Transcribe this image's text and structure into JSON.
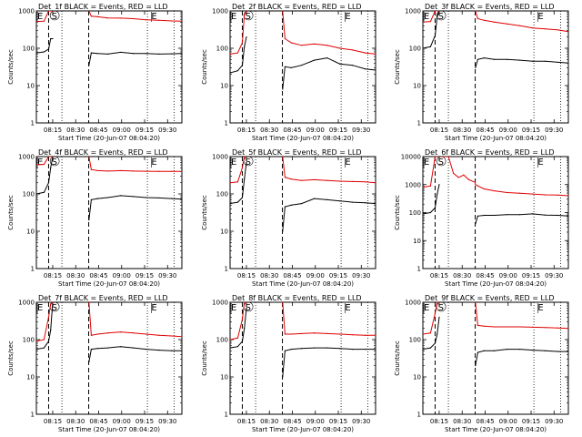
{
  "figure": {
    "xlabel": "Start Time (20-Jun-07 08:04:20)",
    "ylabel": "Counts/sec",
    "x_ticks": [
      "08:15",
      "08:30",
      "08:45",
      "09:00",
      "09:15",
      "09:30"
    ],
    "x_tick_seconds": [
      640,
      1540,
      2440,
      3340,
      4240,
      5140
    ],
    "xlim_seconds": [
      0,
      5700
    ],
    "y_ticks": [
      "1",
      "10",
      "100",
      "1000"
    ],
    "y_tick_values": [
      1,
      10,
      100,
      1000
    ],
    "ylim": [
      1,
      1000
    ],
    "ylog": true,
    "legend_colors": {
      "events": "#000000",
      "lld": "#e00000"
    },
    "markers": {
      "E_left_seconds": 0,
      "S_seconds": 700,
      "E_right_seconds": 4500,
      "dashed_seconds": [
        480,
        2050
      ],
      "dotted_seconds": [
        1000,
        4350,
        5400
      ]
    }
  },
  "chart_data": [
    {
      "type": "line",
      "title": "Det_1f BLACK = Events, RED = LLD",
      "ylim": [
        1,
        1000
      ],
      "series": [
        {
          "name": "Events",
          "color": "#000000",
          "x": [
            0,
            300,
            480,
            560,
            640,
            700,
            720,
            2050,
            2060,
            2150,
            2400,
            2800,
            3300,
            3800,
            4300,
            4800,
            5300,
            5700
          ],
          "values": [
            75,
            80,
            95,
            180,
            180,
            null,
            null,
            null,
            35,
            75,
            72,
            70,
            78,
            72,
            72,
            70,
            71,
            72
          ]
        },
        {
          "name": "LLD",
          "color": "#e00000",
          "x": [
            0,
            300,
            480,
            560,
            640,
            700,
            720,
            2050,
            2060,
            2150,
            2400,
            2800,
            3300,
            3800,
            4300,
            4800,
            5300,
            5700
          ],
          "values": [
            520,
            530,
            1000,
            1000,
            1000,
            null,
            null,
            null,
            1000,
            720,
            700,
            650,
            640,
            620,
            580,
            560,
            540,
            530
          ]
        }
      ]
    },
    {
      "type": "line",
      "title": "Det_2f BLACK = Events, RED = LLD",
      "ylim": [
        1,
        1000
      ],
      "series": [
        {
          "name": "Events",
          "color": "#000000",
          "x": [
            0,
            300,
            480,
            560,
            640,
            700,
            720,
            2050,
            2060,
            2150,
            2400,
            2800,
            3300,
            3800,
            4300,
            4800,
            5300,
            5700
          ],
          "values": [
            22,
            25,
            35,
            110,
            200,
            null,
            null,
            null,
            8,
            32,
            30,
            35,
            48,
            55,
            38,
            35,
            28,
            26
          ]
        },
        {
          "name": "LLD",
          "color": "#e00000",
          "x": [
            0,
            300,
            480,
            560,
            640,
            700,
            720,
            2050,
            2060,
            2150,
            2400,
            2800,
            3300,
            3800,
            4300,
            4800,
            5300,
            5700
          ],
          "values": [
            70,
            75,
            140,
            800,
            1000,
            null,
            null,
            null,
            1000,
            180,
            140,
            120,
            130,
            120,
            100,
            90,
            75,
            70
          ]
        }
      ]
    },
    {
      "type": "line",
      "title": "Det_3f BLACK = Events, RED = LLD",
      "ylim": [
        1,
        1000
      ],
      "series": [
        {
          "name": "Events",
          "color": "#000000",
          "x": [
            0,
            300,
            480,
            560,
            640,
            700,
            720,
            2050,
            2060,
            2150,
            2400,
            2800,
            3300,
            3800,
            4300,
            4800,
            5300,
            5700
          ],
          "values": [
            100,
            110,
            220,
            700,
            1000,
            null,
            null,
            null,
            30,
            50,
            55,
            50,
            50,
            48,
            45,
            45,
            42,
            40
          ]
        },
        {
          "name": "LLD",
          "color": "#e00000",
          "x": [
            0,
            300,
            480,
            560,
            640,
            700,
            720,
            2050,
            2060,
            2150,
            2400,
            2800,
            3300,
            3800,
            4300,
            4800,
            5300,
            5700
          ],
          "values": [
            500,
            520,
            1000,
            1000,
            1000,
            null,
            null,
            null,
            1000,
            620,
            560,
            500,
            450,
            400,
            350,
            330,
            310,
            280
          ]
        }
      ]
    },
    {
      "type": "line",
      "title": "Det_4f BLACK = Events, RED = LLD",
      "ylim": [
        1,
        1000
      ],
      "series": [
        {
          "name": "Events",
          "color": "#000000",
          "x": [
            0,
            300,
            480,
            560,
            640,
            700,
            720,
            2050,
            2060,
            2150,
            2400,
            2800,
            3300,
            3800,
            4300,
            4800,
            5300,
            5700
          ],
          "values": [
            100,
            110,
            200,
            500,
            1000,
            null,
            null,
            null,
            20,
            70,
            75,
            80,
            90,
            85,
            80,
            78,
            75,
            72
          ]
        },
        {
          "name": "LLD",
          "color": "#e00000",
          "x": [
            0,
            300,
            480,
            560,
            640,
            700,
            720,
            2050,
            2060,
            2150,
            2400,
            2800,
            3300,
            3800,
            4300,
            4800,
            5300,
            5700
          ],
          "values": [
            600,
            620,
            1000,
            1000,
            1000,
            null,
            null,
            null,
            1000,
            450,
            420,
            410,
            420,
            410,
            405,
            400,
            400,
            400
          ]
        }
      ]
    },
    {
      "type": "line",
      "title": "Det_5f BLACK = Events, RED = LLD",
      "ylim": [
        1,
        1000
      ],
      "series": [
        {
          "name": "Events",
          "color": "#000000",
          "x": [
            0,
            300,
            480,
            560,
            640,
            700,
            720,
            2050,
            2060,
            2150,
            2400,
            2800,
            3300,
            3800,
            4300,
            4800,
            5300,
            5700
          ],
          "values": [
            55,
            60,
            80,
            250,
            700,
            null,
            null,
            null,
            10,
            45,
            50,
            55,
            75,
            70,
            65,
            60,
            58,
            55
          ]
        },
        {
          "name": "LLD",
          "color": "#e00000",
          "x": [
            0,
            300,
            480,
            560,
            640,
            700,
            720,
            2050,
            2060,
            2150,
            2400,
            2800,
            3300,
            3800,
            4300,
            4800,
            5300,
            5700
          ],
          "values": [
            200,
            210,
            500,
            1000,
            1000,
            null,
            null,
            null,
            1000,
            280,
            250,
            230,
            240,
            230,
            220,
            215,
            210,
            200
          ]
        }
      ]
    },
    {
      "type": "line",
      "title": "Det_6f BLACK = Events, RED = LLD",
      "ylim": [
        1,
        10000
      ],
      "series": [
        {
          "name": "Events",
          "color": "#000000",
          "x": [
            0,
            300,
            480,
            560,
            640,
            700,
            720,
            2050,
            2060,
            2150,
            2400,
            2800,
            3300,
            3800,
            4300,
            4800,
            5300,
            5700
          ],
          "values": [
            90,
            100,
            150,
            450,
            1000,
            null,
            null,
            null,
            40,
            75,
            80,
            80,
            85,
            85,
            90,
            82,
            80,
            75
          ]
        },
        {
          "name": "LLD",
          "color": "#e00000",
          "x": [
            0,
            300,
            480,
            560,
            640,
            700,
            720,
            1000,
            1200,
            1400,
            1600,
            1800,
            2050,
            2060,
            2150,
            2400,
            2800,
            3300,
            3800,
            4300,
            4800,
            5300,
            5700
          ],
          "values": [
            800,
            900,
            10000,
            10000,
            10000,
            null,
            10000,
            10000,
            2500,
            1800,
            2200,
            1500,
            1200,
            1000,
            900,
            700,
            600,
            520,
            490,
            460,
            430,
            420,
            400
          ]
        }
      ]
    },
    {
      "type": "line",
      "title": "Det_7f BLACK = Events, RED = LLD",
      "ylim": [
        1,
        1000
      ],
      "series": [
        {
          "name": "Events",
          "color": "#000000",
          "x": [
            0,
            300,
            480,
            560,
            640,
            700,
            720,
            2050,
            2060,
            2150,
            2400,
            2800,
            3300,
            3800,
            4300,
            4800,
            5300,
            5700
          ],
          "values": [
            55,
            60,
            90,
            180,
            1000,
            null,
            null,
            null,
            25,
            55,
            58,
            60,
            65,
            60,
            55,
            52,
            50,
            50
          ]
        },
        {
          "name": "LLD",
          "color": "#e00000",
          "x": [
            0,
            300,
            480,
            560,
            640,
            700,
            720,
            2050,
            2060,
            2150,
            2400,
            2800,
            3300,
            3800,
            4300,
            4800,
            5300,
            5700
          ],
          "values": [
            90,
            100,
            400,
            900,
            1000,
            null,
            null,
            null,
            1000,
            130,
            140,
            150,
            160,
            150,
            140,
            130,
            125,
            120
          ]
        }
      ]
    },
    {
      "type": "line",
      "title": "Det_8f BLACK = Events, RED = LLD",
      "ylim": [
        1,
        1000
      ],
      "series": [
        {
          "name": "Events",
          "color": "#000000",
          "x": [
            0,
            300,
            480,
            560,
            640,
            700,
            720,
            2050,
            2060,
            2150,
            2400,
            2800,
            3300,
            3800,
            4300,
            4800,
            5300,
            5700
          ],
          "values": [
            60,
            65,
            90,
            200,
            700,
            null,
            null,
            null,
            10,
            50,
            55,
            58,
            60,
            60,
            58,
            55,
            55,
            55
          ]
        },
        {
          "name": "LLD",
          "color": "#e00000",
          "x": [
            0,
            300,
            480,
            560,
            640,
            700,
            720,
            2050,
            2060,
            2150,
            2400,
            2800,
            3300,
            3800,
            4300,
            4800,
            5300,
            5700
          ],
          "values": [
            100,
            110,
            350,
            1000,
            1000,
            null,
            null,
            null,
            1000,
            140,
            140,
            145,
            150,
            145,
            140,
            135,
            130,
            130
          ]
        }
      ]
    },
    {
      "type": "line",
      "title": "Det_9f BLACK = Events, RED = LLD",
      "ylim": [
        1,
        1000
      ],
      "series": [
        {
          "name": "Events",
          "color": "#000000",
          "x": [
            0,
            300,
            480,
            560,
            640,
            700,
            720,
            2050,
            2060,
            2150,
            2400,
            2800,
            3300,
            3800,
            4300,
            4800,
            5300,
            5700
          ],
          "values": [
            55,
            60,
            80,
            140,
            400,
            null,
            null,
            null,
            20,
            45,
            50,
            50,
            55,
            55,
            52,
            50,
            48,
            48
          ]
        },
        {
          "name": "LLD",
          "color": "#e00000",
          "x": [
            0,
            300,
            480,
            560,
            640,
            700,
            720,
            2050,
            2060,
            2150,
            2400,
            2800,
            3300,
            3800,
            4300,
            4800,
            5300,
            5700
          ],
          "values": [
            140,
            150,
            500,
            1000,
            1000,
            null,
            null,
            null,
            1000,
            240,
            230,
            220,
            220,
            220,
            215,
            210,
            205,
            200
          ]
        }
      ]
    }
  ]
}
